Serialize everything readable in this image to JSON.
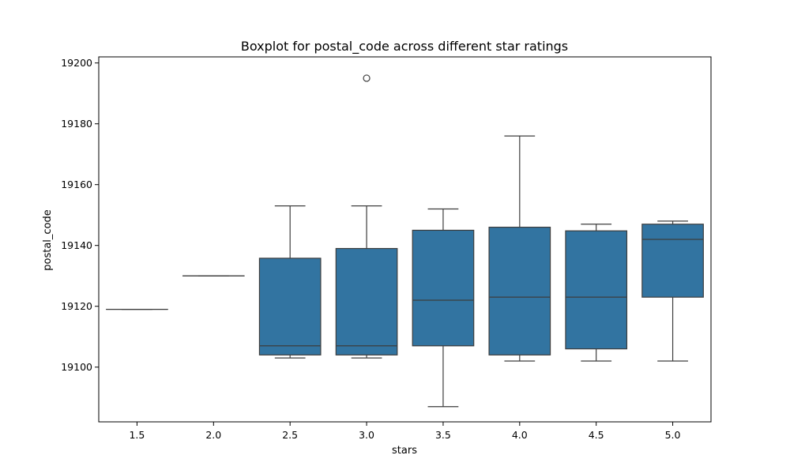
{
  "chart_data": {
    "type": "boxplot",
    "title": "Boxplot for postal_code across different star ratings",
    "xlabel": "stars",
    "ylabel": "postal_code",
    "categories": [
      "1.5",
      "2.0",
      "2.5",
      "3.0",
      "3.5",
      "4.0",
      "4.5",
      "5.0"
    ],
    "ylim": [
      19082,
      19202
    ],
    "yticks": [
      19100,
      19120,
      19140,
      19160,
      19180,
      19200
    ],
    "grid": false,
    "box_color": "#3274a1",
    "line_color": "#3d3d3d",
    "boxes": [
      {
        "category": "1.5",
        "whisker_low": 19119,
        "q1": 19119,
        "median": 19119,
        "q3": 19119,
        "whisker_high": 19119,
        "outliers": []
      },
      {
        "category": "2.0",
        "whisker_low": 19130,
        "q1": 19130,
        "median": 19130,
        "q3": 19130,
        "whisker_high": 19130,
        "outliers": []
      },
      {
        "category": "2.5",
        "whisker_low": 19103,
        "q1": 19104,
        "median": 19107,
        "q3": 19135.8,
        "whisker_high": 19153,
        "outliers": []
      },
      {
        "category": "3.0",
        "whisker_low": 19103,
        "q1": 19104,
        "median": 19107,
        "q3": 19139,
        "whisker_high": 19153,
        "outliers": [
          19195
        ]
      },
      {
        "category": "3.5",
        "whisker_low": 19087,
        "q1": 19107,
        "median": 19122,
        "q3": 19145,
        "whisker_high": 19152,
        "outliers": []
      },
      {
        "category": "4.0",
        "whisker_low": 19102,
        "q1": 19104,
        "median": 19123,
        "q3": 19146,
        "whisker_high": 19176,
        "outliers": []
      },
      {
        "category": "4.5",
        "whisker_low": 19102,
        "q1": 19106,
        "median": 19123,
        "q3": 19144.8,
        "whisker_high": 19147,
        "outliers": []
      },
      {
        "category": "5.0",
        "whisker_low": 19102,
        "q1": 19123,
        "median": 19142,
        "q3": 19147,
        "whisker_high": 19148,
        "outliers": []
      }
    ]
  }
}
